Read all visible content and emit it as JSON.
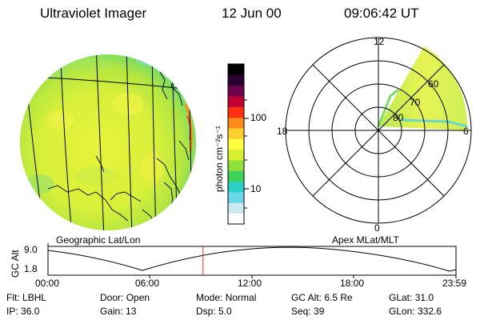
{
  "header": {
    "title": "Ultraviolet Imager",
    "date": "12 Jun 00",
    "time": "09:06:42 UT"
  },
  "colorbar": {
    "unit_label": "photon cm⁻²s⁻¹",
    "ticks": [
      "100",
      "10"
    ],
    "colors": [
      "#ffffff",
      "#cde9f0",
      "#6ad7e8",
      "#2dd0c8",
      "#3fd25a",
      "#8fe03a",
      "#d8f030",
      "#ffff40",
      "#ffd030",
      "#ff8a1a",
      "#ff3010",
      "#c00030",
      "#700050",
      "#2a0030",
      "#000000"
    ]
  },
  "polar": {
    "labels": {
      "top": "12",
      "left": "18",
      "right": "6",
      "bottom": "0",
      "r60": "60",
      "r70": "70",
      "r80": "80"
    }
  },
  "captions": {
    "left": "Geographic Lat/Lon",
    "right": "Apex MLat/MLT"
  },
  "orbit": {
    "ylabel": "GC Alt",
    "yticks": [
      "9.0",
      "1.8"
    ],
    "xticks": [
      "00:00",
      "06:00",
      "12:00",
      "18:00",
      "23:59"
    ],
    "marker_fraction": 0.38
  },
  "info": {
    "row1": [
      {
        "label": "Flt:",
        "value": "LBHL"
      },
      {
        "label": "Door:",
        "value": "Open"
      },
      {
        "label": "Mode:",
        "value": "Normal"
      },
      {
        "label": "GC Alt:",
        "value": "6.5 Re"
      },
      {
        "label": "GLat:",
        "value": "31.0"
      }
    ],
    "row2": [
      {
        "label": "IP:",
        "value": "36.0"
      },
      {
        "label": "Gain:",
        "value": "13"
      },
      {
        "label": "Dsp:",
        "value": "5.0"
      },
      {
        "label": "Seq:",
        "value": "39"
      },
      {
        "label": "GLon:",
        "value": "332.6"
      }
    ]
  }
}
